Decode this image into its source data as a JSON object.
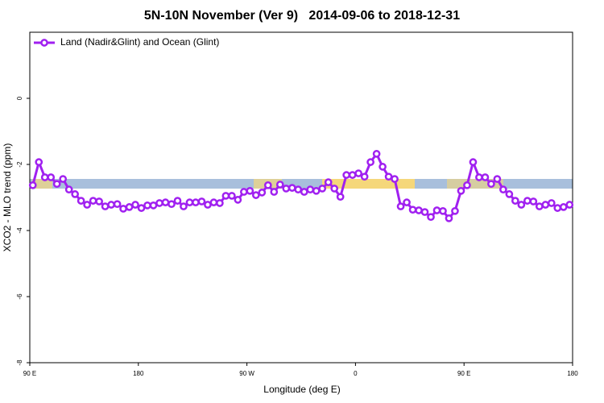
{
  "chart_data": {
    "type": "line",
    "title": "5N-10N November (Ver 9)   2014-09-06 to 2018-12-31",
    "xlabel": "Longitude (deg E)",
    "ylabel": "XCO2 - MLO trend (ppm)",
    "x": [
      92.5,
      97.5,
      102.5,
      107.5,
      112.5,
      117.5,
      122.5,
      127.5,
      132.5,
      137.5,
      142.5,
      147.5,
      152.5,
      157.5,
      162.5,
      167.5,
      172.5,
      177.5,
      182.5,
      187.5,
      192.5,
      197.5,
      202.5,
      207.5,
      212.5,
      217.5,
      222.5,
      227.5,
      232.5,
      237.5,
      242.5,
      247.5,
      252.5,
      257.5,
      262.5,
      267.5,
      272.5,
      277.5,
      282.5,
      287.5,
      292.5,
      297.5,
      302.5,
      307.5,
      312.5,
      317.5,
      322.5,
      327.5,
      332.5,
      337.5,
      342.5,
      347.5,
      352.5,
      357.5,
      362.5,
      367.5,
      372.5,
      377.5,
      382.5,
      387.5,
      392.5,
      397.5,
      402.5,
      407.5,
      412.5,
      417.5,
      422.5,
      427.5,
      432.5,
      437.5,
      442.5,
      447.5,
      452.5,
      457.5,
      462.5,
      467.5,
      472.5,
      477.5,
      482.5,
      487.5,
      492.5,
      497.5,
      502.5,
      507.5,
      512.5,
      517.5,
      522.5,
      527.5,
      532.5,
      537.5
    ],
    "series": [
      {
        "name": "Land (Nadir&Glint) and Ocean (Glint)",
        "color": "#a020f0",
        "values": [
          -2.63,
          -1.93,
          -2.39,
          -2.39,
          -2.59,
          -2.44,
          -2.76,
          -2.9,
          -3.1,
          -3.22,
          -3.1,
          -3.12,
          -3.27,
          -3.22,
          -3.2,
          -3.34,
          -3.29,
          -3.22,
          -3.32,
          -3.24,
          -3.24,
          -3.17,
          -3.15,
          -3.2,
          -3.1,
          -3.27,
          -3.15,
          -3.15,
          -3.12,
          -3.22,
          -3.15,
          -3.17,
          -2.95,
          -2.95,
          -3.07,
          -2.83,
          -2.8,
          -2.93,
          -2.85,
          -2.63,
          -2.83,
          -2.61,
          -2.73,
          -2.71,
          -2.76,
          -2.83,
          -2.76,
          -2.8,
          -2.73,
          -2.54,
          -2.73,
          -2.98,
          -2.32,
          -2.32,
          -2.27,
          -2.37,
          -1.93,
          -1.68,
          -2.07,
          -2.37,
          -2.44,
          -3.27,
          -3.15,
          -3.37,
          -3.39,
          -3.44,
          -3.59,
          -3.39,
          -3.41,
          -3.63,
          -3.41,
          -2.8,
          -2.63,
          -1.93,
          -2.39,
          -2.39,
          -2.59,
          -2.44,
          -2.76,
          -2.9,
          -3.1,
          -3.22,
          -3.1,
          -3.12,
          -3.27,
          -3.22,
          -3.17,
          -3.32,
          -3.29,
          -3.22
        ]
      }
    ],
    "xlim": [
      90,
      540
    ],
    "xticks": [
      {
        "value": 90,
        "label": "90 E"
      },
      180,
      {
        "value": 270,
        "label": "90 W"
      },
      {
        "value": 360,
        "label": "0"
      },
      {
        "value": 450,
        "label": "90 E"
      },
      {
        "value": 540,
        "label": "180"
      }
    ],
    "ylim": [
      -8,
      2
    ],
    "yticks": [
      -8,
      -6,
      -4,
      -2,
      0
    ],
    "legend": "upper left"
  }
}
